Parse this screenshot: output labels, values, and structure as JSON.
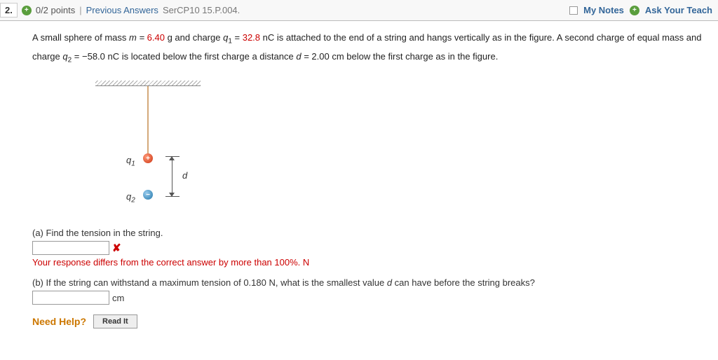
{
  "header": {
    "number": "2.",
    "points": "0/2 points",
    "prev": "Previous Answers",
    "source": "SerCP10 15.P.004.",
    "myNotes": "My Notes",
    "askTeacher": "Ask Your Teach"
  },
  "problem": {
    "t1": "A small sphere of mass ",
    "m_eq": "m = ",
    "m_val": "6.40",
    "t2": " g and charge ",
    "q1_sym": "q",
    "q1_sub": "1",
    "q1_eq": " = ",
    "q1_val": "32.8",
    "t3": " nC is attached to the end of a string and hangs vertically as in the figure. A second charge of equal mass and charge ",
    "q2_sym": "q",
    "q2_sub": "2",
    "q2_eq": " = ",
    "q2_val": "−58.0",
    "t4": " nC is located below the first charge a distance ",
    "d_eq": "d = ",
    "d_val": "2.00",
    "t5": " cm below the first charge as in the figure."
  },
  "figure": {
    "q1": "q",
    "q1sub": "1",
    "q2": "q",
    "q2sub": "2",
    "d": "d",
    "plus": "+",
    "minus": "−"
  },
  "partA": {
    "text": "(a) Find the tension in the string.",
    "feedback": "Your response differs from the correct answer by more than 100%.",
    "unit": " N"
  },
  "partB": {
    "text1": "(b) If the string can withstand a maximum tension of ",
    "val": "0.180",
    "text2": " N, what is the smallest value ",
    "d": "d",
    "text3": " can have before the string breaks?",
    "unit": "cm"
  },
  "help": {
    "label": "Need Help?",
    "readIt": "Read It"
  }
}
